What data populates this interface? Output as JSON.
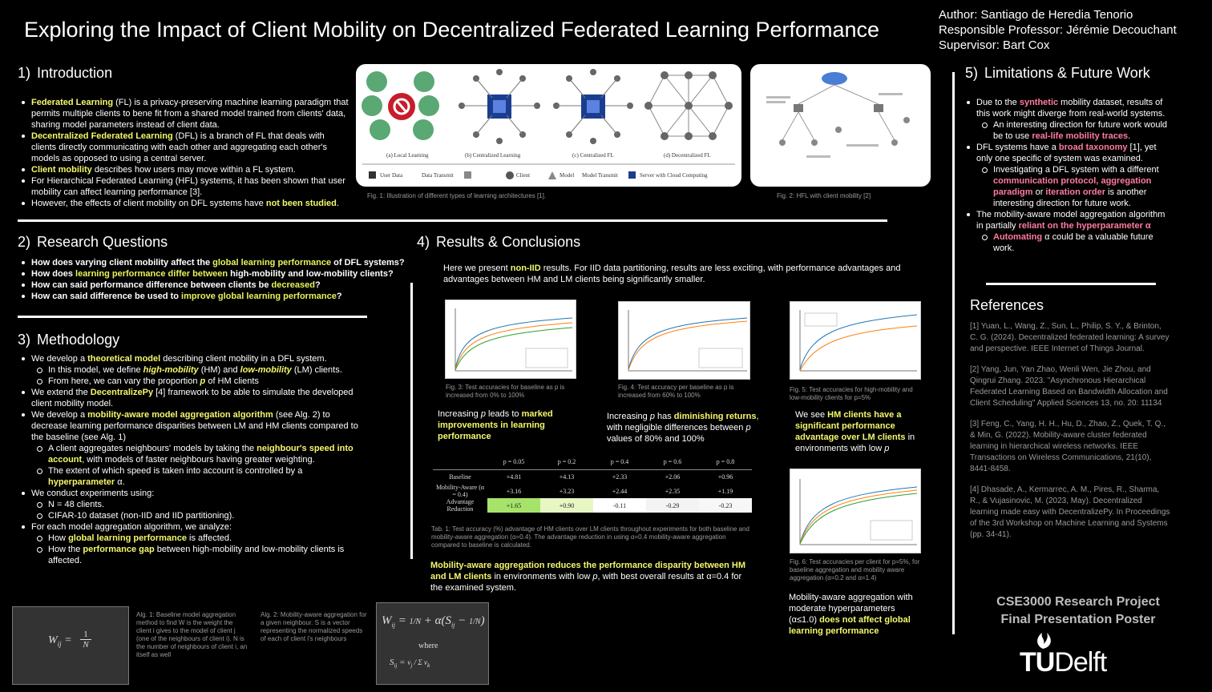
{
  "header": {
    "title": "Exploring the Impact of Client Mobility on Decentralized Federated Learning Performance",
    "author": "Author: Santiago de Heredia Tenorio",
    "professor": "Responsible Professor: Jérémie Decouchant",
    "supervisor": "Supervisor: Bart Cox"
  },
  "intro": {
    "number": "1)",
    "heading": "Introduction",
    "b1_a": "Federated Learning",
    "b1_b": " (FL) is a privacy-preserving machine learning paradigm that permits multiple clients to bene fit from a shared model trained from clients' data, sharing model parameters instead of client data.",
    "b2_a": "Decentralized Federated Learning",
    "b2_b": " (DFL) is a branch of FL that deals with clients directly communicating with each other and aggregating each other's models as opposed to using a central server.",
    "b3_a": "Client mobility",
    "b3_b": " describes how users may move within a FL system.",
    "b4": "For Hierarchical Federated Learning (HFL) systems, it has been shown that user mobility can affect learning performance [3].",
    "b5_a": "However, the effects of client mobility on DFL systems have ",
    "b5_b": "not been studied",
    "b5_c": ".",
    "fig1": {
      "a": "(a) Local Learning",
      "b": "(b) Centralized Learning",
      "c": "(c) Centralized FL",
      "d": "(d) Decentralized FL",
      "legend": [
        "User Data",
        "Data Transmit",
        "Client",
        "Model",
        "Model Transmit",
        "Server with Cloud Computing"
      ],
      "caption": "Fig. 1: Illustration of different types of learning architectures [1]."
    },
    "fig2": {
      "caption": "Fig. 2: HFL with client mobility [2]"
    }
  },
  "rq": {
    "number": "2)",
    "heading": "Research Questions",
    "q1_a": "How does varying client mobility affect the ",
    "q1_b": "global learning performance",
    "q1_c": " of DFL systems?",
    "q2_a": "How does ",
    "q2_b": "learning performance differ between",
    "q2_c": " high-mobility and low-mobility clients?",
    "q3_a": "How can said performance difference between clients be ",
    "q3_b": "decreased",
    "q3_c": "?",
    "q4_a": "How can said difference be used to ",
    "q4_b": "improve global learning performance",
    "q4_c": "?"
  },
  "method": {
    "number": "3)",
    "heading": "Methodology",
    "m1_a": "We develop a ",
    "m1_b": "theoretical model",
    "m1_c": " describing client mobility in a DFL system.",
    "m1s1_a": "In this model, we define ",
    "m1s1_b": "high-mobility",
    "m1s1_c": " (HM) and ",
    "m1s1_d": "low-mobility",
    "m1s1_e": " (LM) clients.",
    "m1s2_a": "From here, we can vary the proportion ",
    "m1s2_b": "p",
    "m1s2_c": " of HM clients",
    "m2_a": "We extend the ",
    "m2_b": "DecentralizePy",
    "m2_c": " [4] framework to be able to simulate the developed client mobility model.",
    "m3_a": "We develop a ",
    "m3_b": "mobility-aware model aggregation algorithm",
    "m3_c": " (see Alg. 2) to decrease learning performance disparities between LM and HM clients compared to the baseline (see Alg. 1)",
    "m3s1_a": "A client aggregates neighbours' models by taking the ",
    "m3s1_b": "neighbour's speed into account",
    "m3s1_c": ", with models of faster neighbours having greater weighting.",
    "m3s2_a": "The extent of which speed is taken into account is controlled by a ",
    "m3s2_b": "hyperparameter",
    "m3s2_c": " α.",
    "m4": "We conduct experiments using:",
    "m4s1": "N = 48 clients.",
    "m4s2": "CIFAR-10 dataset (non-IID and IID partitioning).",
    "m5": "For each model aggregation algorithm, we analyze:",
    "m5s1_a": "How ",
    "m5s1_b": "global learning performance",
    "m5s1_c": " is affected.",
    "m5s2_a": "How the ",
    "m5s2_b": "performance gap",
    "m5s2_c": " between high-mobility and low-mobility clients is affected.",
    "alg1": {
      "formula_lhs": "W",
      "formula_sub": "ij",
      "formula_eq": "=",
      "formula_num": "1",
      "formula_den": "N",
      "caption": "Alg. 1: Baseline model aggregation method to find  W is the weight the client i gives to the model of client j (one of the neighbours of client i). N is the number of neighbours of client i, an itself as well"
    },
    "alg2": {
      "caption": "Alg. 2: Mobility-aware aggregation for a given neighbour. S is a vector representing the normalized speeds of each of client i's neighbours",
      "where": "where"
    }
  },
  "results": {
    "number": "4)",
    "heading": "Results & Conclusions",
    "intro_a": "Here we present ",
    "intro_b": "non-IID",
    "intro_c": " results. For IID data partitioning, results are less exciting, with performance advantages and advantages between HM and LM clients being significantly smaller.",
    "fig3_caption": "Fig. 3: Test accuracies for baseline as p is increased from 0% to 100%",
    "fig4_caption": "Fig. 4: Test accuracy per baseline as p is increased from 60% to 100%",
    "fig5_caption": "Fig. 5: Test accuracies for high-mobility and low-mobility clients for p=5%",
    "fig6_caption": "Fig. 6: Test accuracies per client for p=5%, for baseline aggregation and mobility aware aggregation (α=0.2 and α=1.4)",
    "c1_a": "Increasing ",
    "c1_b": "p",
    "c1_c": " leads to ",
    "c1_d": "marked improvements in learning performance",
    "c2_a": "Increasing ",
    "c2_b": "p",
    "c2_c": " has ",
    "c2_d": "diminishing returns",
    ", ": "",
    "c2_e": ", with negligible differences between ",
    "c2_f": "p",
    "c2_g": " values of 80% and 100%",
    "c3_a": "We see ",
    "c3_b": "HM clients have a significant performance advantage over LM clients",
    "c3_c": " in environments with low ",
    "c3_d": "p",
    "c4_a": "Mobility-aware aggregation reduces the performance disparity between HM and LM clients",
    "c4_b": " in environments with low ",
    "c4_c": "p",
    "c4_d": ", with best overall results at α=0.4 for the examined system.",
    "c5_a": "Mobility-aware aggregation with moderate hyperparameters (α≤1.0) ",
    "c5_b": "does not affect global learning performance",
    "table": {
      "headers": [
        "p = 0.05",
        "p = 0.2",
        "p = 0.4",
        "p = 0.6",
        "p = 0.8"
      ],
      "rows": [
        {
          "label": "Baseline",
          "cells": [
            "+4.81",
            "+4.13",
            "+2.33",
            "+2.06",
            "+0.96"
          ]
        },
        {
          "label": "Mobility-Aware (α = 0.4)",
          "cells": [
            "+3.16",
            "+3.23",
            "+2.44",
            "+2.35",
            "+1.19"
          ]
        },
        {
          "label": "Advantage Reduction",
          "cells": [
            "+1.65",
            "+0.90",
            "-0.11",
            "-0.29",
            "-0.23"
          ]
        }
      ],
      "caption": "Tab. 1: Test accuracy (%) advantage of HM clients over LM clients throughout experiments for both baseline and mobility-aware aggregation (α=0.4). The advantage reduction in using α=0.4 mobility-aware aggregation compared to baseline is calculated."
    }
  },
  "future": {
    "number": "5)",
    "heading": "Limitations & Future Work",
    "f1_a": "Due to the ",
    "f1_b": "synthetic",
    "f1_c": " mobility dataset, results of this work might diverge from real-world systems.",
    "f1s1_a": "An interesting direction for future work would be to use ",
    "f1s1_b": "real-life mobility traces",
    "f1s1_c": ".",
    "f2_a": "DFL systems have a ",
    "f2_b": "broad taxonomy",
    "f2_c": " [1], yet only one specific of system was examined.",
    "f2s1_a": "Investigating a DFL system with a different ",
    "f2s1_b": "communication protocol, aggregation paradigm",
    "f2s1_c": " or ",
    "f2s1_d": "iteration order",
    "f2s1_e": " is another interesting direction for future work.",
    "f3_a": "The mobility-aware model aggregation algorithm in partially ",
    "f3_b": "reliant on the hyperparameter α",
    "f3s1_a": "Automating",
    "f3s1_b": " α could be a valuable future work."
  },
  "references": {
    "heading": "References",
    "items": [
      "[1] Yuan, L., Wang, Z., Sun, L., Philip, S. Y., & Brinton, C. G. (2024). Decentralized federated learning: A survey and perspective. IEEE Internet of Things Journal.",
      "[2] Yang, Jun, Yan Zhao, Wenli Wen, Jie Zhou, and Qingrui Zhang. 2023. \"Asynchronous Hierarchical Federated Learning Based on Bandwidth Allocation and Client Scheduling\" Applied Sciences 13, no. 20: 11134",
      "[3] Feng, C., Yang, H. H., Hu, D., Zhao, Z., Quek, T. Q., & Min, G. (2022). Mobility-aware cluster federated learning in hierarchical wireless networks. IEEE Transactions on Wireless Communications, 21(10), 8441-8458.",
      "[4] Dhasade, A., Kermarrec, A. M., Pires, R., Sharma, R., & Vujasinovic, M. (2023, May). Decentralized learning made easy with DecentralizePy. In Proceedings of the 3rd Workshop on Machine Learning and Systems (pp. 34-41)."
    ]
  },
  "footer": {
    "project": "CSE3000 Research Project",
    "poster": "Final Presentation Poster",
    "logo_tu": "TU",
    "logo_delft": "Delft"
  }
}
